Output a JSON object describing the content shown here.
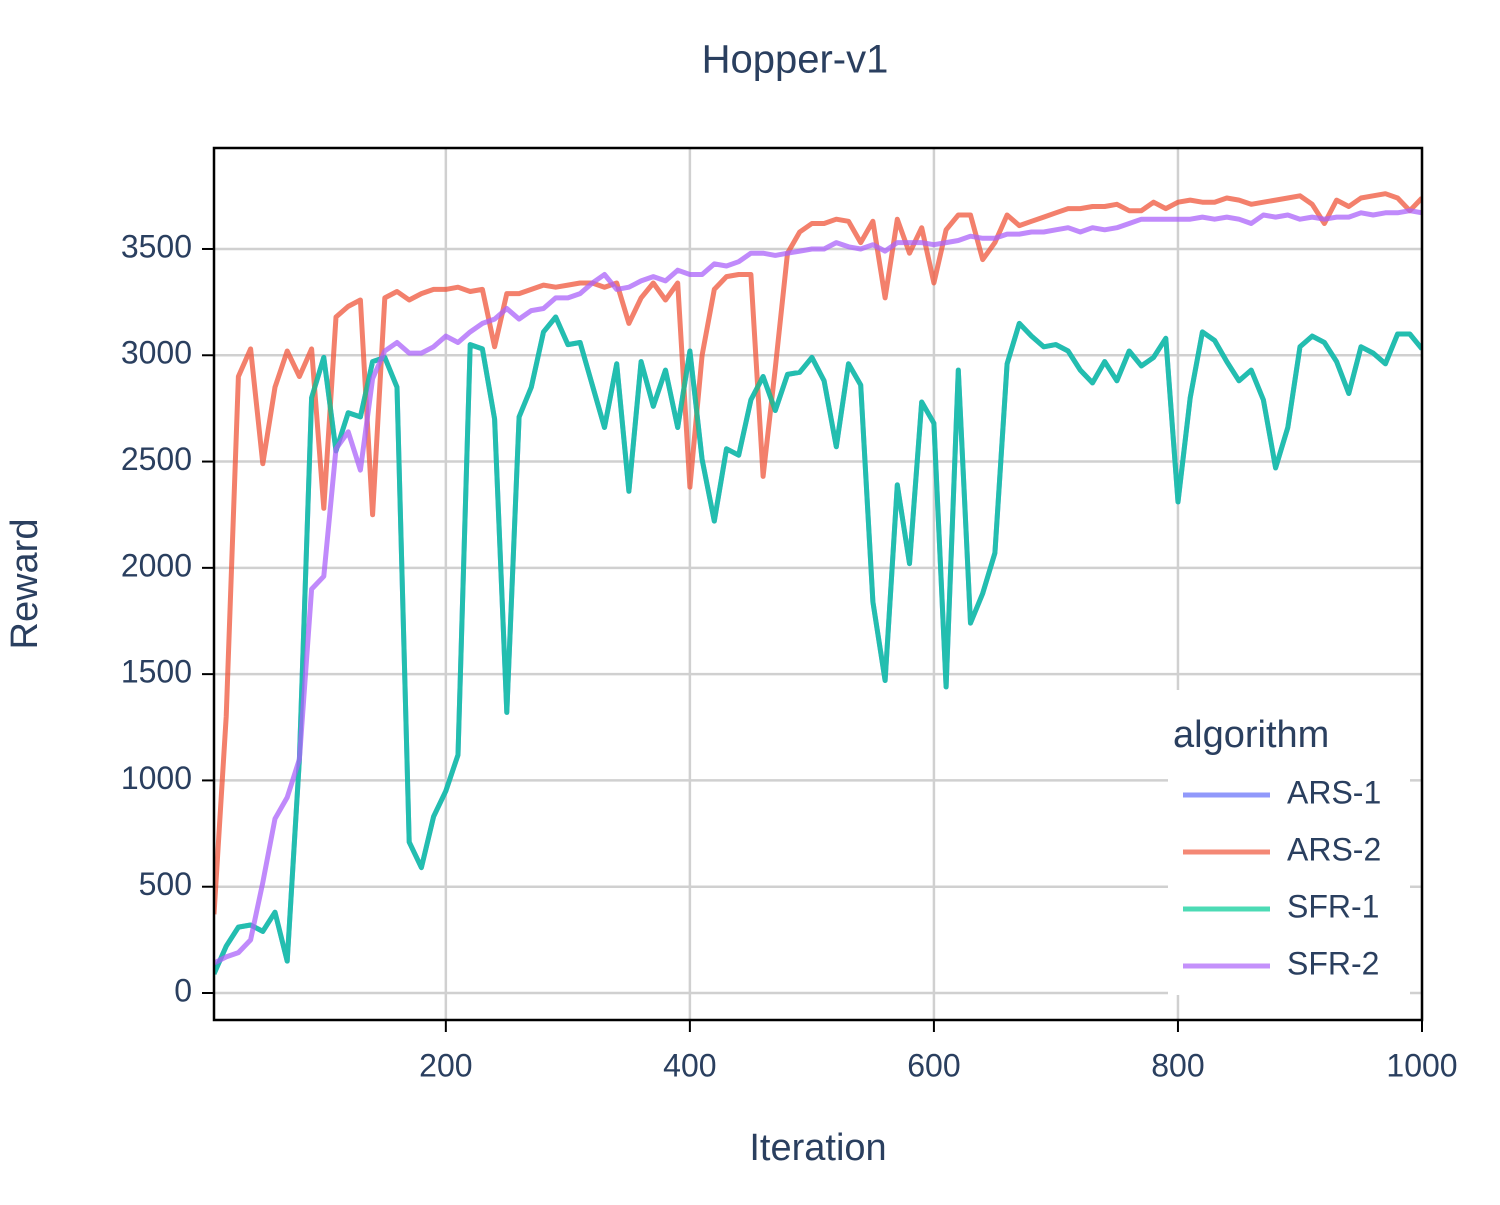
{
  "chart_data": {
    "type": "line",
    "title": "Hopper-v1",
    "x_label": "Iteration",
    "y_label": "Reward",
    "x": [
      10,
      20,
      30,
      40,
      50,
      60,
      70,
      80,
      90,
      100,
      110,
      120,
      130,
      140,
      150,
      160,
      170,
      180,
      190,
      200,
      210,
      220,
      230,
      240,
      250,
      260,
      270,
      280,
      290,
      300,
      310,
      320,
      330,
      340,
      350,
      360,
      370,
      380,
      390,
      400,
      410,
      420,
      430,
      440,
      450,
      460,
      470,
      480,
      490,
      500,
      510,
      520,
      530,
      540,
      550,
      560,
      570,
      580,
      590,
      600,
      610,
      620,
      630,
      640,
      650,
      660,
      670,
      680,
      690,
      700,
      710,
      720,
      730,
      740,
      750,
      760,
      770,
      780,
      790,
      800,
      810,
      820,
      830,
      840,
      850,
      860,
      870,
      880,
      890,
      900,
      910,
      920,
      930,
      940,
      950,
      960,
      970,
      980,
      990,
      1000
    ],
    "series": [
      {
        "name": "ARS-1",
        "color": "#636efa",
        "values": [
          90,
          220,
          310,
          320,
          290,
          380,
          150,
          1100,
          2800,
          2990,
          2550,
          2730,
          2710,
          2970,
          2990,
          2850,
          710,
          590,
          830,
          950,
          1120,
          3050,
          3030,
          2700,
          1320,
          2710,
          2850,
          3110,
          3180,
          3050,
          3060,
          2860,
          2660,
          2960,
          2360,
          2970,
          2760,
          2930,
          2660,
          3020,
          2510,
          2220,
          2560,
          2530,
          2790,
          2900,
          2740,
          2910,
          2920,
          2990,
          2880,
          2570,
          2960,
          2860,
          1840,
          1470,
          2390,
          2020,
          2780,
          2680,
          1440,
          2930,
          1740,
          1880,
          2070,
          2960,
          3150,
          3090,
          3040,
          3050,
          3020,
          2930,
          2870,
          2970,
          2880,
          3020,
          2950,
          2990,
          3080,
          2310,
          2800,
          3110,
          3070,
          2970,
          2880,
          2930,
          2790,
          2470,
          2660,
          3040,
          3090,
          3060,
          2970,
          2820,
          3040,
          3010,
          2960,
          3100,
          3100,
          3030
        ]
      },
      {
        "name": "ARS-2",
        "color": "#ef553b",
        "values": [
          370,
          1300,
          2900,
          3030,
          2490,
          2850,
          3020,
          2900,
          3030,
          2280,
          3180,
          3230,
          3260,
          2250,
          3270,
          3300,
          3260,
          3290,
          3310,
          3310,
          3320,
          3300,
          3310,
          3040,
          3290,
          3290,
          3310,
          3330,
          3320,
          3330,
          3340,
          3340,
          3320,
          3340,
          3150,
          3270,
          3340,
          3260,
          3340,
          2380,
          3000,
          3310,
          3370,
          3380,
          3380,
          2430,
          2940,
          3480,
          3580,
          3620,
          3620,
          3640,
          3630,
          3530,
          3630,
          3270,
          3640,
          3480,
          3600,
          3340,
          3590,
          3660,
          3660,
          3450,
          3530,
          3660,
          3610,
          3630,
          3650,
          3670,
          3690,
          3690,
          3700,
          3700,
          3710,
          3680,
          3680,
          3720,
          3690,
          3720,
          3730,
          3720,
          3720,
          3740,
          3730,
          3710,
          3720,
          3730,
          3740,
          3750,
          3710,
          3620,
          3730,
          3700,
          3740,
          3750,
          3760,
          3740,
          3680,
          3740
        ]
      },
      {
        "name": "SFR-1",
        "color": "#00cc96",
        "values": [
          90,
          220,
          310,
          320,
          290,
          380,
          150,
          1100,
          2800,
          2990,
          2550,
          2730,
          2710,
          2970,
          2990,
          2850,
          710,
          590,
          830,
          950,
          1120,
          3050,
          3030,
          2700,
          1320,
          2710,
          2850,
          3110,
          3180,
          3050,
          3060,
          2860,
          2660,
          2960,
          2360,
          2970,
          2760,
          2930,
          2660,
          3020,
          2510,
          2220,
          2560,
          2530,
          2790,
          2900,
          2740,
          2910,
          2920,
          2990,
          2880,
          2570,
          2960,
          2860,
          1840,
          1470,
          2390,
          2020,
          2780,
          2680,
          1440,
          2930,
          1740,
          1880,
          2070,
          2960,
          3150,
          3090,
          3040,
          3050,
          3020,
          2930,
          2870,
          2970,
          2880,
          3020,
          2950,
          2990,
          3080,
          2310,
          2800,
          3110,
          3070,
          2970,
          2880,
          2930,
          2790,
          2470,
          2660,
          3040,
          3090,
          3060,
          2970,
          2820,
          3040,
          3010,
          2960,
          3100,
          3100,
          3030
        ]
      },
      {
        "name": "SFR-2",
        "color": "#ab63fa",
        "values": [
          140,
          170,
          190,
          250,
          520,
          820,
          920,
          1100,
          1900,
          1960,
          2560,
          2640,
          2460,
          2890,
          3020,
          3060,
          3010,
          3010,
          3040,
          3090,
          3060,
          3110,
          3150,
          3170,
          3220,
          3170,
          3210,
          3220,
          3270,
          3270,
          3290,
          3340,
          3380,
          3310,
          3320,
          3350,
          3370,
          3350,
          3400,
          3380,
          3380,
          3430,
          3420,
          3440,
          3480,
          3480,
          3470,
          3480,
          3490,
          3500,
          3500,
          3530,
          3510,
          3500,
          3520,
          3490,
          3530,
          3530,
          3530,
          3520,
          3530,
          3540,
          3560,
          3550,
          3550,
          3570,
          3570,
          3580,
          3580,
          3590,
          3600,
          3580,
          3600,
          3590,
          3600,
          3620,
          3640,
          3640,
          3640,
          3640,
          3640,
          3650,
          3640,
          3650,
          3640,
          3620,
          3660,
          3650,
          3660,
          3640,
          3650,
          3640,
          3650,
          3650,
          3670,
          3660,
          3670,
          3670,
          3680,
          3670
        ]
      }
    ],
    "xlim": [
      10,
      1000
    ],
    "ylim": [
      -127,
      3975
    ],
    "xticks": [
      200,
      400,
      600,
      800,
      1000
    ],
    "yticks": [
      0,
      500,
      1000,
      1500,
      2000,
      2500,
      3000,
      3500
    ],
    "grid": true,
    "legend_title": "algorithm",
    "legend_position": "lower right"
  }
}
